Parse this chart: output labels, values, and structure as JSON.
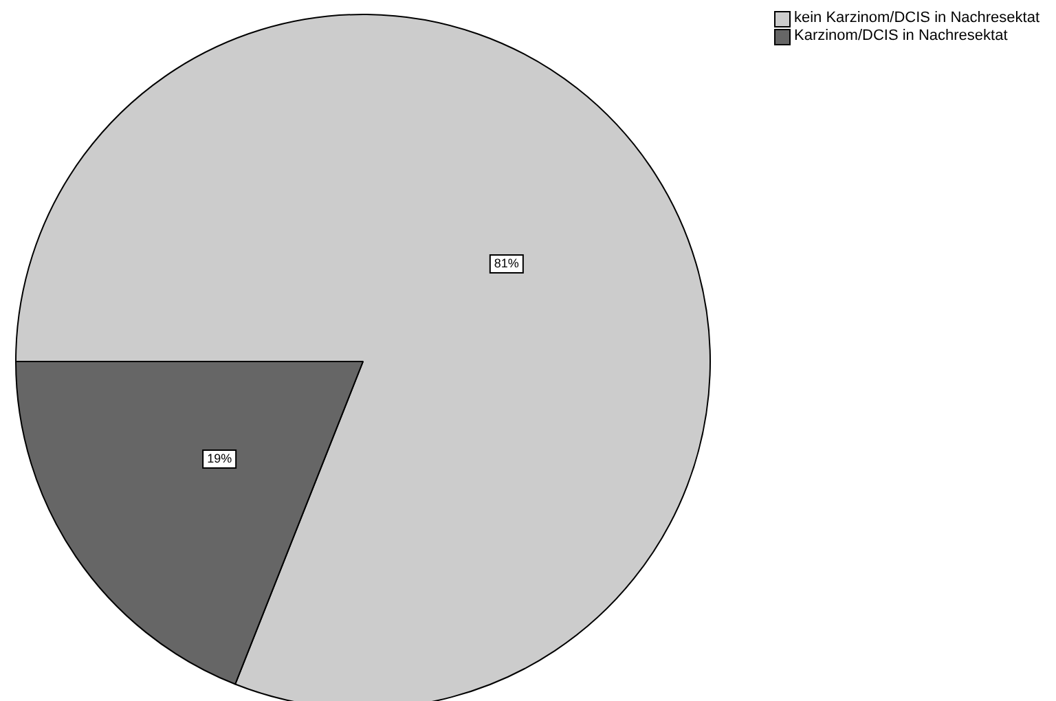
{
  "chart_data": {
    "type": "pie",
    "categories": [
      "kein Karzinom/DCIS in Nachresektat",
      "Karzinom/DCIS in Nachresektat"
    ],
    "values": [
      81,
      19
    ],
    "colors": [
      "#cccccc",
      "#666666"
    ],
    "value_labels": [
      "81%",
      "19%"
    ],
    "legend": "top right"
  }
}
